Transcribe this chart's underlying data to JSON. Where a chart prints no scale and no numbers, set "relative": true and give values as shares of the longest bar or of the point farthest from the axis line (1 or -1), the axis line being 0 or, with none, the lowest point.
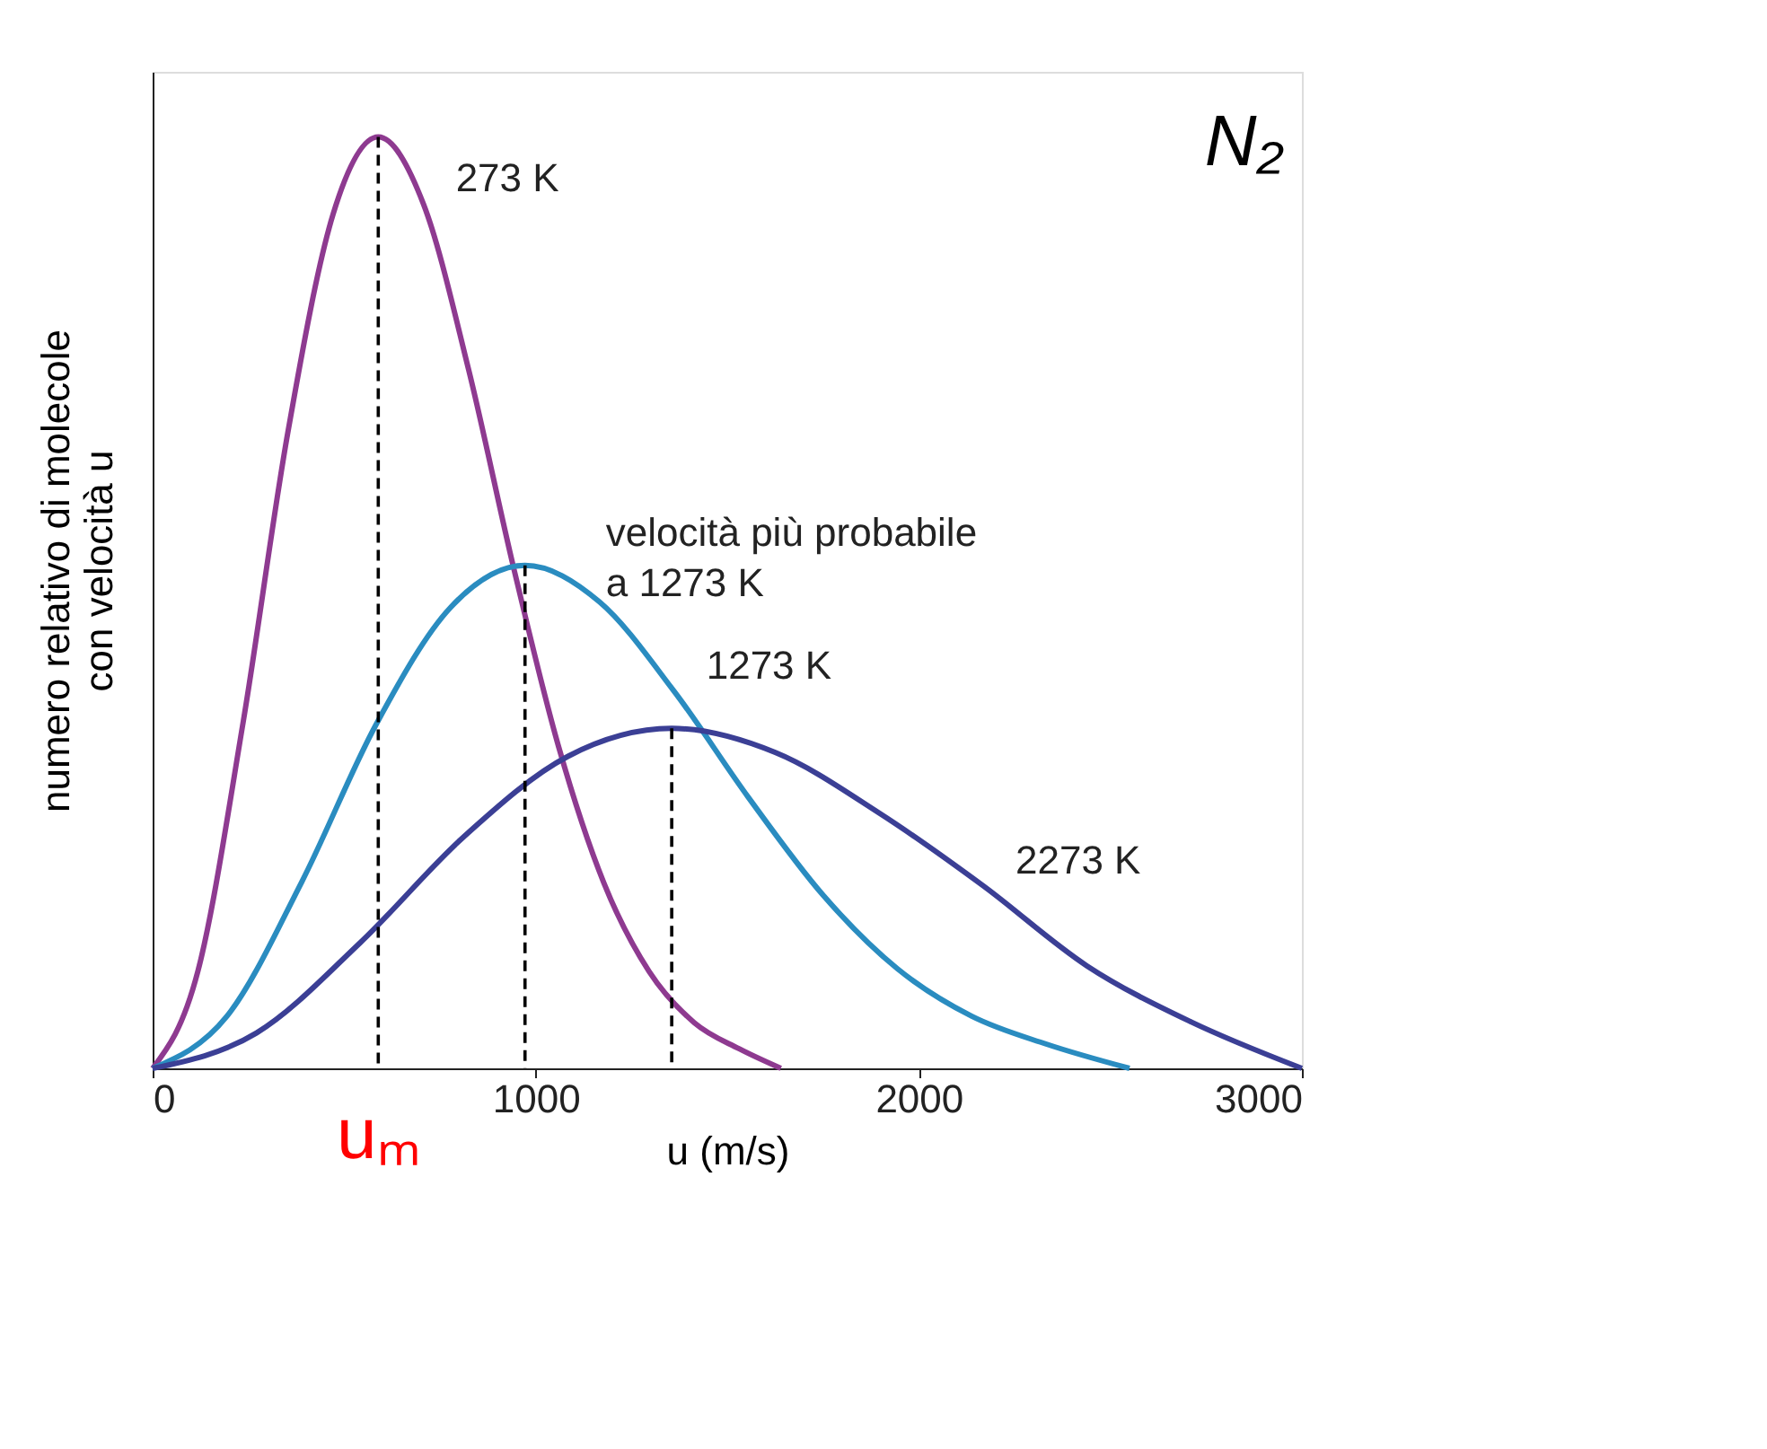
{
  "chart_data": {
    "type": "line",
    "relative": true,
    "xlabel": "u (m/s)",
    "ylabel": "numero relativo di molecole\ncon velocità u",
    "xlim": [
      0,
      3000
    ],
    "xticks": [
      0,
      1000,
      2000,
      3000
    ],
    "tick_labels": "x",
    "grid": false,
    "line_style": "solid",
    "series": [
      {
        "name": "273 K",
        "color": "#8e3a90",
        "x": [
          0,
          118,
          236,
          353,
          471,
          589,
          707,
          825,
          942,
          1060,
          1178,
          1296,
          1414,
          1531,
          1640
        ],
        "values": [
          0,
          0.104,
          0.371,
          0.683,
          0.917,
          1,
          0.928,
          0.75,
          0.538,
          0.345,
          0.199,
          0.104,
          0.049,
          0.021,
          0
        ]
      },
      {
        "name": "1273 K",
        "color": "#2a8cc0",
        "x": [
          0,
          194,
          389,
          583,
          778,
          972,
          1166,
          1361,
          1555,
          1750,
          1944,
          2138,
          2333,
          2550
        ],
        "values": [
          0,
          0.056,
          0.2,
          0.369,
          0.495,
          0.54,
          0.501,
          0.405,
          0.291,
          0.186,
          0.107,
          0.056,
          0.026,
          0
        ]
      },
      {
        "name": "2273 K",
        "color": "#3b3f95",
        "x": [
          0,
          271,
          542,
          813,
          1084,
          1355,
          1626,
          1897,
          2168,
          2439,
          2710,
          3000
        ],
        "values": [
          0,
          0.038,
          0.135,
          0.249,
          0.335,
          0.365,
          0.339,
          0.274,
          0.196,
          0.11,
          0.05,
          0
        ]
      },
      {
        "type": "line",
        "line_style": "dashed",
        "color": "#000000",
        "x": [
          589,
          589
        ],
        "values": [
          1,
          0
        ]
      },
      {
        "type": "line",
        "line_style": "dashed",
        "color": "#000000",
        "x": [
          972,
          972
        ],
        "values": [
          0.54,
          0
        ]
      },
      {
        "type": "line",
        "line_style": "dashed",
        "color": "#000000",
        "x": [
          1355,
          1355
        ],
        "values": [
          0.365,
          0
        ]
      }
    ],
    "annotations": [
      {
        "text": "velocità più probabile\na 1273 K",
        "x": 972,
        "y": 0.54
      },
      "N₂",
      "uₘ"
    ]
  }
}
